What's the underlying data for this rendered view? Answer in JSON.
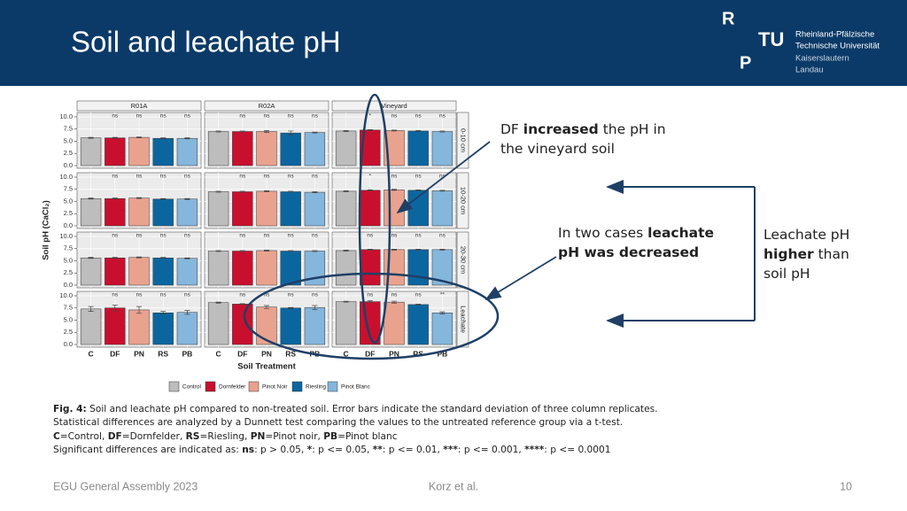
{
  "header": {
    "title": "Soil and leachate pH",
    "logo": {
      "letters": [
        "R",
        "TU",
        "P"
      ],
      "lines": [
        "Rheinland-Pfälzische",
        "Technische Universität",
        "Kaiserslautern",
        "Landau"
      ]
    }
  },
  "chart_data": {
    "type": "bar",
    "ylabel": "Soil pH (CaCl₂)",
    "xlabel": "Soil Treatment",
    "categories": [
      "C",
      "DF",
      "PN",
      "RS",
      "PB"
    ],
    "column_titles": [
      "R01A",
      "R02A",
      "Vineyard"
    ],
    "row_titles": [
      "0-10 cm",
      "10-20 cm",
      "20-30 cm",
      "Leachate"
    ],
    "legend": [
      {
        "name": "Control",
        "color": "#bdbdbd"
      },
      {
        "name": "Dornfelder",
        "color": "#c8102e"
      },
      {
        "name": "Pinot Noir",
        "color": "#e9a28e"
      },
      {
        "name": "Riesling",
        "color": "#0b66a0"
      },
      {
        "name": "Pinot Blanc",
        "color": "#85b6dc"
      }
    ],
    "ylim": [
      0,
      10
    ],
    "yticks": [
      {
        "value": 0,
        "label": "0.0"
      },
      {
        "value": 2.5,
        "label": "2.5"
      },
      {
        "value": 5,
        "label": "5.0"
      },
      {
        "value": 7.5,
        "label": "7.5"
      },
      {
        "value": 10,
        "label": "10.0"
      }
    ],
    "grid": true,
    "panels": [
      [
        {
          "values": [
            5.7,
            5.7,
            5.8,
            5.6,
            5.6
          ],
          "errors": [
            0.1,
            0.1,
            0.1,
            0.1,
            0.1
          ],
          "significance": [
            null,
            "ns",
            "ns",
            "ns",
            "ns"
          ]
        },
        {
          "values": [
            7.0,
            7.0,
            7.0,
            6.7,
            6.8
          ],
          "errors": [
            0.1,
            0.1,
            0.2,
            0.4,
            0.1
          ],
          "significance": [
            null,
            "ns",
            "ns",
            "ns",
            "ns"
          ]
        },
        {
          "values": [
            7.1,
            7.3,
            7.2,
            7.1,
            7.0
          ],
          "errors": [
            0.1,
            0.1,
            0.1,
            0.1,
            0.1
          ],
          "significance": [
            null,
            "*",
            "ns",
            "ns",
            "ns"
          ]
        }
      ],
      [
        {
          "values": [
            5.6,
            5.6,
            5.7,
            5.5,
            5.5
          ],
          "errors": [
            0.1,
            0.1,
            0.1,
            0.1,
            0.1
          ],
          "significance": [
            null,
            "ns",
            "ns",
            "ns",
            "ns"
          ]
        },
        {
          "values": [
            7.0,
            7.0,
            7.1,
            7.0,
            6.9
          ],
          "errors": [
            0.1,
            0.1,
            0.1,
            0.1,
            0.1
          ],
          "significance": [
            null,
            "ns",
            "ns",
            "ns",
            "ns"
          ]
        },
        {
          "values": [
            7.1,
            7.3,
            7.4,
            7.3,
            7.2
          ],
          "errors": [
            0.1,
            0.1,
            0.1,
            0.1,
            0.1
          ],
          "significance": [
            null,
            "*",
            "ns",
            "ns",
            "ns"
          ]
        }
      ],
      [
        {
          "values": [
            5.6,
            5.6,
            5.7,
            5.6,
            5.5
          ],
          "errors": [
            0.1,
            0.1,
            0.1,
            0.1,
            0.1
          ],
          "significance": [
            null,
            "ns",
            "ns",
            "ns",
            "ns"
          ]
        },
        {
          "values": [
            7.0,
            7.0,
            7.1,
            7.0,
            7.0
          ],
          "errors": [
            0.1,
            0.1,
            0.1,
            0.1,
            0.1
          ],
          "significance": [
            null,
            "ns",
            "ns",
            "ns",
            "ns"
          ]
        },
        {
          "values": [
            7.1,
            7.3,
            7.3,
            7.3,
            7.3
          ],
          "errors": [
            0.1,
            0.1,
            0.1,
            0.1,
            0.1
          ],
          "significance": [
            null,
            "ns",
            "ns",
            "ns",
            "ns"
          ]
        }
      ],
      [
        {
          "values": [
            7.3,
            7.5,
            7.1,
            6.5,
            6.6
          ],
          "errors": [
            0.5,
            0.6,
            0.7,
            0.3,
            0.4
          ],
          "significance": [
            null,
            "ns",
            "ns",
            "ns",
            "ns"
          ]
        },
        {
          "values": [
            8.6,
            8.3,
            7.7,
            7.5,
            7.6
          ],
          "errors": [
            0.1,
            0.1,
            0.3,
            0.1,
            0.4
          ],
          "significance": [
            null,
            "ns",
            "ns",
            "ns",
            "ns"
          ]
        },
        {
          "values": [
            8.8,
            8.8,
            8.7,
            8.2,
            6.5
          ],
          "errors": [
            0.1,
            0.2,
            0.2,
            0.1,
            0.2
          ],
          "significance": [
            null,
            "ns",
            "ns",
            "ns",
            "**"
          ]
        }
      ]
    ]
  },
  "annotations": [
    {
      "lines": [
        [
          {
            "text": "DF ",
            "bold": false
          },
          {
            "text": "increased",
            "bold": true
          },
          {
            "text": " the pH in",
            "bold": false
          }
        ],
        [
          {
            "text": "the vineyard soil",
            "bold": false
          }
        ]
      ]
    },
    {
      "lines": [
        [
          {
            "text": "In two cases ",
            "bold": false
          },
          {
            "text": "leachate",
            "bold": true
          }
        ],
        [
          {
            "text": "pH was decreased",
            "bold": true
          }
        ]
      ]
    },
    {
      "lines": [
        [
          {
            "text": "Leachate pH",
            "bold": false
          }
        ],
        [
          {
            "text": "higher",
            "bold": true
          },
          {
            "text": " than",
            "bold": false
          }
        ],
        [
          {
            "text": "soil pH",
            "bold": false
          }
        ]
      ]
    }
  ],
  "caption": {
    "lines": [
      [
        {
          "text": "Fig. 4:",
          "bold": true
        },
        {
          "text": " Soil and leachate pH compared to non-treated soil. Error bars indicate the standard deviation of three column replicates.",
          "bold": false
        }
      ],
      [
        {
          "text": "Statistical differences are analyzed by a Dunnett test comparing the values to the untreated reference group via a t-test.",
          "bold": false
        }
      ],
      [
        {
          "text": "C",
          "bold": true
        },
        {
          "text": "=Control, ",
          "bold": false
        },
        {
          "text": "DF",
          "bold": true
        },
        {
          "text": "=Dornfelder, ",
          "bold": false
        },
        {
          "text": "RS",
          "bold": true
        },
        {
          "text": "=Riesling, ",
          "bold": false
        },
        {
          "text": "PN",
          "bold": true
        },
        {
          "text": "=Pinot noir, ",
          "bold": false
        },
        {
          "text": "PB",
          "bold": true
        },
        {
          "text": "=Pinot blanc",
          "bold": false
        }
      ],
      [
        {
          "text": "Significant differences are indicated as: ",
          "bold": false
        },
        {
          "text": "ns",
          "bold": true
        },
        {
          "text": ": p > 0.05, ",
          "bold": false
        },
        {
          "text": "*",
          "bold": true
        },
        {
          "text": ": p <= 0.05, ",
          "bold": false
        },
        {
          "text": "**",
          "bold": true
        },
        {
          "text": ": p <= 0.01, ",
          "bold": false
        },
        {
          "text": "***",
          "bold": true
        },
        {
          "text": ": p <= 0.001, ",
          "bold": false
        },
        {
          "text": "****",
          "bold": true
        },
        {
          "text": ": p <= 0.0001",
          "bold": false
        }
      ]
    ]
  },
  "footer": {
    "left": "EGU General Assembly 2023",
    "center": "Korz et al.",
    "page": "10"
  }
}
